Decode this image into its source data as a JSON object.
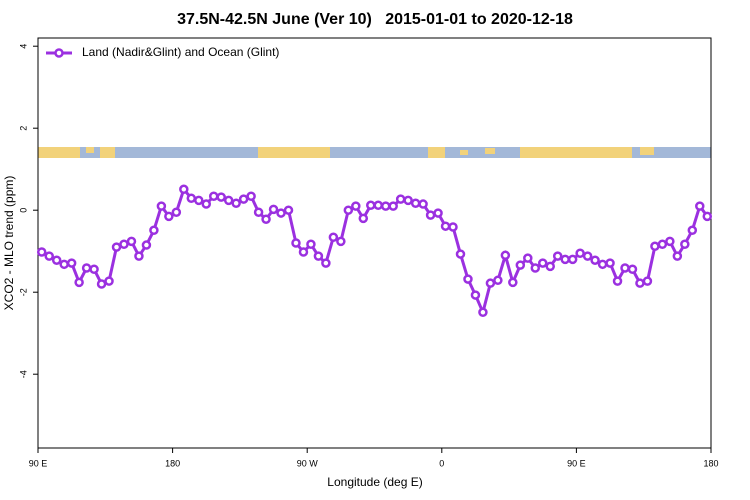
{
  "chart_data": {
    "type": "line",
    "title": "37.5N-42.5N June (Ver 10)   2015-01-01 to 2020-12-18",
    "xlabel": "Longitude (deg E)",
    "ylabel": "XCO2 - MLO trend (ppm)",
    "legend": "upper left",
    "xlim": [
      90,
      540
    ],
    "ylim": [
      -5.8,
      4.2
    ],
    "xticks": [
      {
        "value": 90,
        "label": "90 E"
      },
      180,
      {
        "value": 270,
        "label": "90 W"
      },
      {
        "value": 360,
        "label": "0"
      },
      {
        "value": 450,
        "label": "90 E"
      },
      {
        "value": 540,
        "label": "180"
      }
    ],
    "yticks": [
      4,
      2,
      0,
      -2,
      -4
    ],
    "x": [
      92.5,
      97.5,
      102.5,
      107.5,
      112.5,
      117.5,
      122.5,
      127.5,
      132.5,
      137.5,
      142.5,
      147.5,
      152.5,
      157.5,
      162.5,
      167.5,
      172.5,
      177.5,
      182.5,
      187.5,
      192.5,
      197.5,
      202.5,
      207.5,
      212.5,
      217.5,
      222.5,
      227.5,
      232.5,
      237.5,
      242.5,
      247.5,
      252.5,
      257.5,
      262.5,
      267.5,
      272.5,
      277.5,
      282.5,
      287.5,
      292.5,
      297.5,
      302.5,
      307.5,
      312.5,
      317.5,
      322.5,
      327.5,
      332.5,
      337.5,
      342.5,
      347.5,
      352.5,
      357.5,
      362.5,
      367.5,
      372.5,
      377.5,
      382.5,
      387.5,
      392.5,
      397.5,
      402.5,
      407.5,
      412.5,
      417.5,
      422.5,
      427.5,
      432.5,
      437.5,
      442.5,
      447.5,
      452.5,
      457.5,
      462.5,
      467.5,
      472.5,
      477.5,
      482.5,
      487.5,
      492.5,
      497.5,
      502.5,
      507.5,
      512.5,
      517.5,
      522.5,
      527.5,
      532.5,
      537.5
    ],
    "series": [
      {
        "name": "Land (Nadir&Glint) and Ocean (Glint)",
        "color": "#9b30e0",
        "values": [
          -1.02,
          -1.12,
          -1.22,
          -1.32,
          -1.29,
          -1.76,
          -1.41,
          -1.44,
          -1.8,
          -1.73,
          -0.9,
          -0.83,
          -0.76,
          -1.12,
          -0.85,
          -0.49,
          0.1,
          -0.15,
          -0.05,
          0.51,
          0.29,
          0.24,
          0.15,
          0.34,
          0.32,
          0.24,
          0.17,
          0.27,
          0.34,
          -0.05,
          -0.22,
          0.02,
          -0.07,
          0,
          -0.8,
          -1.02,
          -0.83,
          -1.12,
          -1.29,
          -0.66,
          -0.76,
          0,
          0.1,
          -0.2,
          0.12,
          0.12,
          0.1,
          0.1,
          0.27,
          0.24,
          0.17,
          0.15,
          -0.12,
          -0.07,
          -0.39,
          -0.41,
          -1.07,
          -1.68,
          -2.07,
          -2.49,
          -1.78,
          -1.71,
          -1.1,
          -1.76,
          -1.34,
          -1.17,
          -1.41,
          -1.29,
          -1.37,
          -1.12,
          -1.2,
          -1.2,
          -1.05,
          -1.12,
          -1.22,
          -1.32,
          -1.29,
          -1.73,
          -1.41,
          -1.44,
          -1.78,
          -1.73,
          -0.88,
          -0.83,
          -0.76,
          -1.12,
          -0.83,
          -0.49,
          0.1,
          -0.15
        ]
      }
    ]
  }
}
